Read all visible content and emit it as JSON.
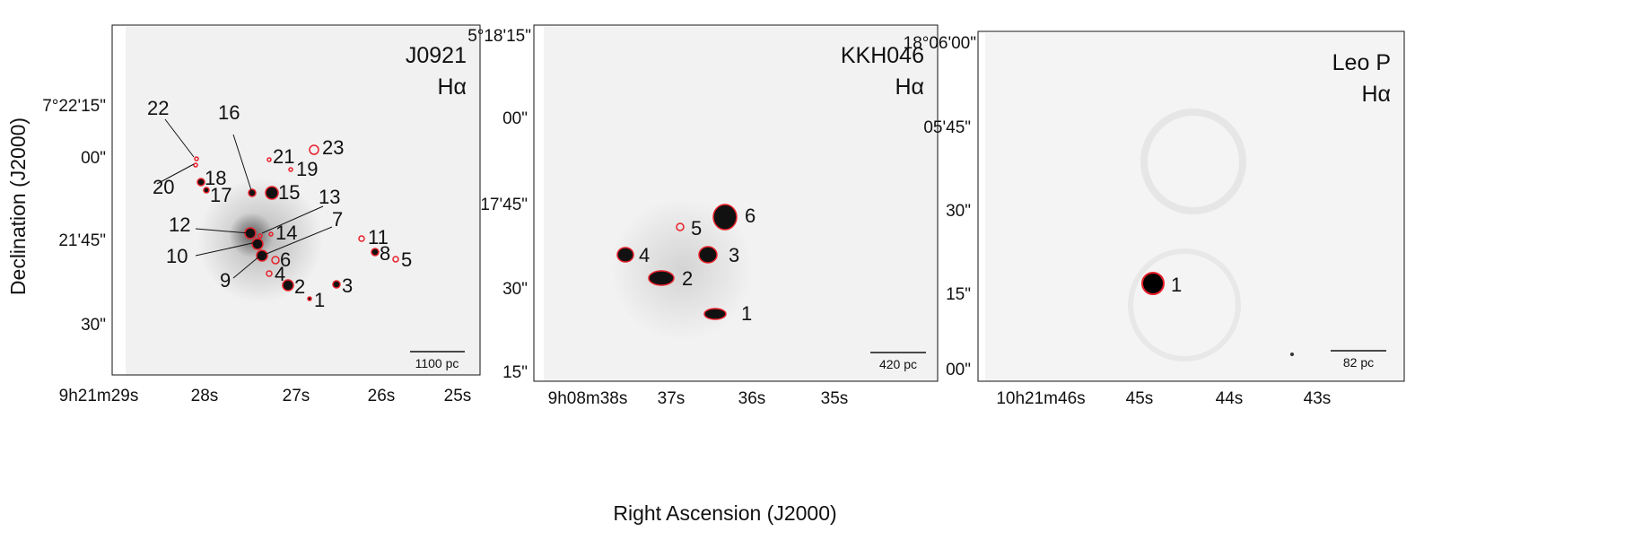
{
  "figure": {
    "xlabel": "Right Ascension (J2000)",
    "ylabel": "Declination (J2000)",
    "contour_color": "#e8202a",
    "panels": [
      {
        "name": "J0921",
        "band": "Hα",
        "scalebar": "1100 pc",
        "yticks": [
          "7°22'15\"",
          "00\"",
          "21'45\"",
          "30\""
        ],
        "xticks": [
          "9h21m29s",
          "28s",
          "27s",
          "26s",
          "25s"
        ],
        "sources": [
          "1",
          "2",
          "3",
          "4",
          "5",
          "6",
          "7",
          "8",
          "9",
          "10",
          "11",
          "12",
          "13",
          "14",
          "15",
          "16",
          "17",
          "18",
          "19",
          "20",
          "21",
          "22",
          "23"
        ]
      },
      {
        "name": "KKH046",
        "band": "Hα",
        "scalebar": "420 pc",
        "yticks": [
          "5°18'15\"",
          "00\"",
          "17'45\"",
          "30\"",
          "15\""
        ],
        "xticks": [
          "9h08m38s",
          "37s",
          "36s",
          "35s"
        ],
        "sources": [
          "1",
          "2",
          "3",
          "4",
          "5",
          "6"
        ]
      },
      {
        "name": "Leo P",
        "band": "Hα",
        "scalebar": "82 pc",
        "yticks": [
          "18°06'00\"",
          "05'45\"",
          "30\"",
          "15\"",
          "00\""
        ],
        "xticks": [
          "10h21m46s",
          "45s",
          "44s",
          "43s"
        ],
        "sources": [
          "1"
        ]
      }
    ]
  }
}
